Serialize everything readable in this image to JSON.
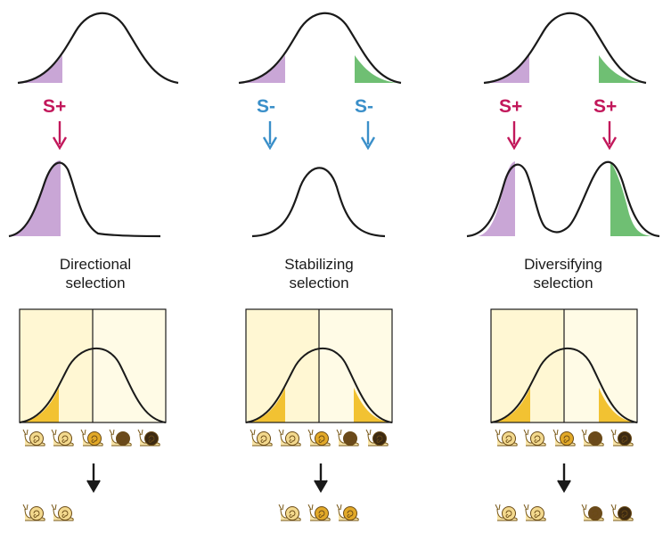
{
  "colors": {
    "curve": "#1a1a1a",
    "s_plus": "#c2185b",
    "s_minus": "#3a8fc9",
    "purple_fill": "#c9a6d6",
    "green_fill": "#6fbf73",
    "panel_bg": "#fff7d3",
    "panel_bg_alt": "#fffbe6",
    "yellow_fill": "#f2c232",
    "arrow_dark": "#1a1a1a"
  },
  "columns": [
    {
      "title_line1": "Directional",
      "title_line2": "selection",
      "markers": [
        "S+"
      ],
      "marker_types": [
        "plus"
      ],
      "snail_input": [
        "light-snail",
        "light-snail",
        "medium-snail",
        "dark-snail",
        "darkest-snail"
      ],
      "snail_output": [
        "light-snail",
        "light-snail"
      ]
    },
    {
      "title_line1": "Stabilizing",
      "title_line2": "selection",
      "markers": [
        "S-",
        "S-"
      ],
      "marker_types": [
        "minus",
        "minus"
      ],
      "snail_input": [
        "light-snail",
        "light-snail",
        "medium-snail",
        "dark-snail",
        "darkest-snail"
      ],
      "snail_output": [
        "light-snail",
        "medium-snail",
        "medium-snail"
      ]
    },
    {
      "title_line1": "Diversifying",
      "title_line2": "selection",
      "markers": [
        "S+",
        "S+"
      ],
      "marker_types": [
        "plus",
        "plus"
      ],
      "snail_input": [
        "light-snail",
        "light-snail",
        "medium-snail",
        "dark-snail",
        "darkest-snail"
      ],
      "snail_output": [
        "light-snail",
        "light-snail",
        "dark-snail",
        "darkest-snail"
      ]
    }
  ],
  "snail_colors": {
    "light-snail": "#f3d98e",
    "medium-snail": "#e2a928",
    "dark-snail": "#6b4a1c",
    "darkest-snail": "#3d2a12"
  }
}
